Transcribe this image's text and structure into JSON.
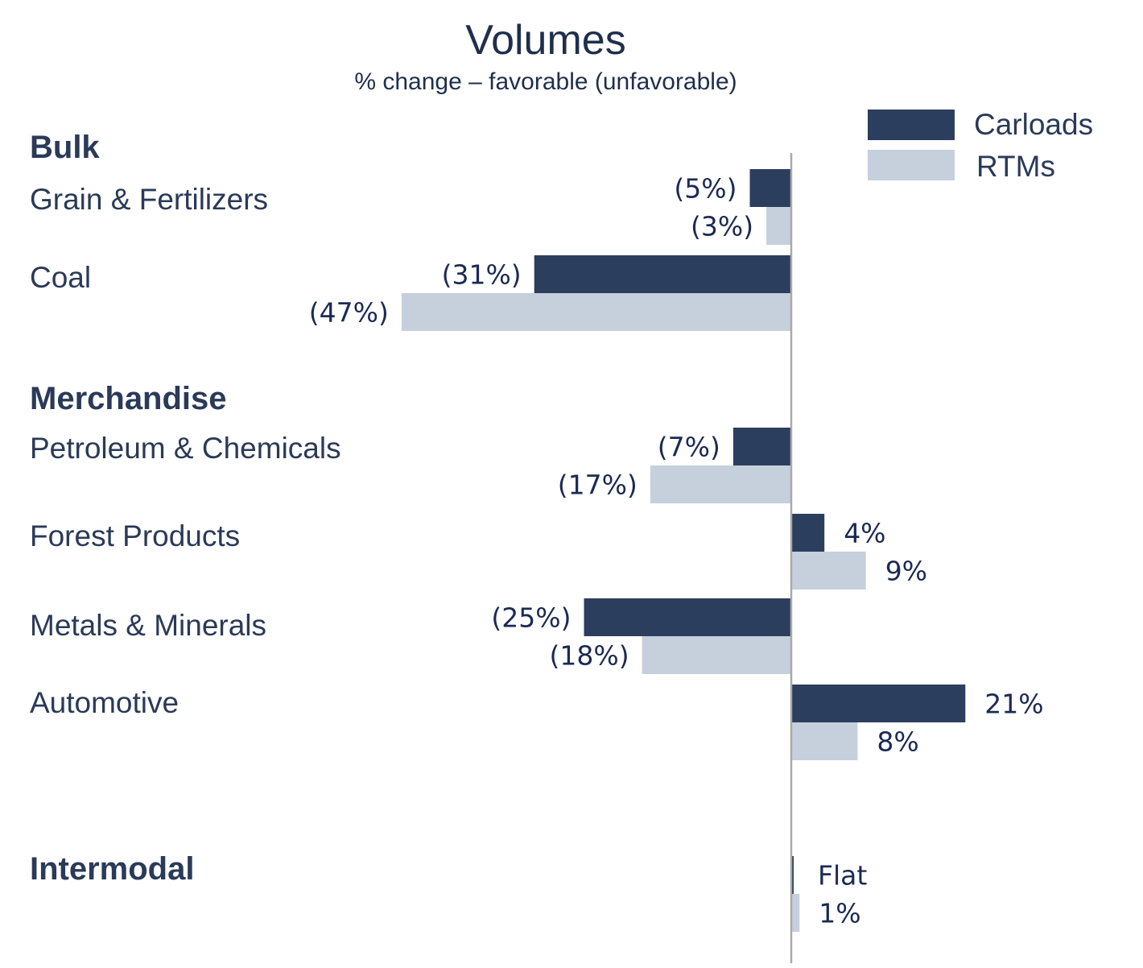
{
  "chart_data": {
    "type": "bar",
    "orientation": "horizontal",
    "title": "Volumes",
    "subtitle": "% change – favorable (unfavorable)",
    "unit": "%",
    "series": [
      {
        "name": "Carloads",
        "color": "#2c3e5e"
      },
      {
        "name": "RTMs",
        "color": "#c5d0dc"
      }
    ],
    "legend_position": "top-right",
    "axis_color": "#a9a9a9",
    "sections": [
      {
        "name": "Bulk",
        "categories": [
          {
            "name": "Grain & Fertilizers",
            "carloads": -5,
            "rtms": -3,
            "carloads_label": "(5%)",
            "rtms_label": "(3%)"
          },
          {
            "name": "Coal",
            "carloads": -31,
            "rtms": -47,
            "carloads_label": "(31%)",
            "rtms_label": "(47%)"
          }
        ]
      },
      {
        "name": "Merchandise",
        "categories": [
          {
            "name": "Petroleum & Chemicals",
            "carloads": -7,
            "rtms": -17,
            "carloads_label": "(7%)",
            "rtms_label": "(17%)"
          },
          {
            "name": "Forest Products",
            "carloads": 4,
            "rtms": 9,
            "carloads_label": "4%",
            "rtms_label": "9%"
          },
          {
            "name": "Metals & Minerals",
            "carloads": -25,
            "rtms": -18,
            "carloads_label": "(25%)",
            "rtms_label": "(18%)"
          },
          {
            "name": "Automotive",
            "carloads": 21,
            "rtms": 8,
            "carloads_label": "21%",
            "rtms_label": "8%"
          }
        ]
      },
      {
        "name": "Intermodal",
        "categories": [
          {
            "name": "",
            "carloads": 0,
            "rtms": 1,
            "carloads_label": "Flat",
            "rtms_label": "1%"
          }
        ]
      }
    ]
  }
}
